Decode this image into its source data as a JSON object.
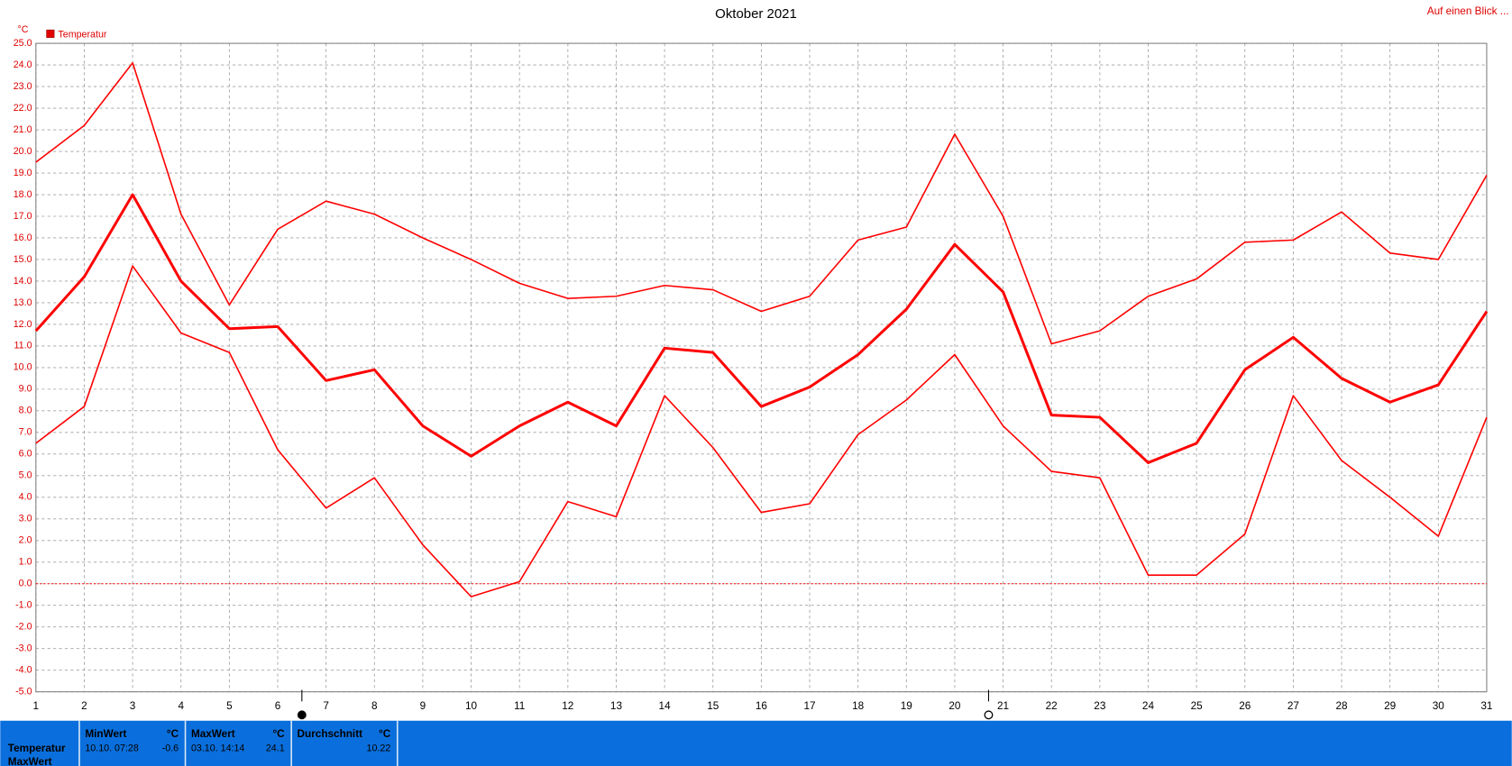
{
  "chart_data": {
    "type": "line",
    "title": "Oktober 2021",
    "y_label": "°C",
    "legend": "Temperatur",
    "corner_link": "Auf einen Blick ...",
    "x": [
      1,
      2,
      3,
      4,
      5,
      6,
      7,
      8,
      9,
      10,
      11,
      12,
      13,
      14,
      15,
      16,
      17,
      18,
      19,
      20,
      21,
      22,
      23,
      24,
      25,
      26,
      27,
      28,
      29,
      30,
      31
    ],
    "xlim": [
      1,
      31
    ],
    "xticks": [
      1,
      2,
      3,
      4,
      5,
      6,
      7,
      8,
      9,
      10,
      11,
      12,
      13,
      14,
      15,
      16,
      17,
      18,
      19,
      20,
      21,
      22,
      23,
      24,
      25,
      26,
      27,
      28,
      29,
      30,
      31
    ],
    "ylim": [
      -5,
      25
    ],
    "yticks": [
      {
        "value": -5,
        "label": "-5.0"
      },
      {
        "value": -4,
        "label": "-4.0"
      },
      {
        "value": -3,
        "label": "-3.0"
      },
      {
        "value": -2,
        "label": "-2.0"
      },
      {
        "value": -1,
        "label": "-1.0"
      },
      {
        "value": 0,
        "label": "0.0"
      },
      {
        "value": 1,
        "label": "1.0"
      },
      {
        "value": 2,
        "label": "2.0"
      },
      {
        "value": 3,
        "label": "3.0"
      },
      {
        "value": 4,
        "label": "4.0"
      },
      {
        "value": 5,
        "label": "5.0"
      },
      {
        "value": 6,
        "label": "6.0"
      },
      {
        "value": 7,
        "label": "7.0"
      },
      {
        "value": 8,
        "label": "8.0"
      },
      {
        "value": 9,
        "label": "9.0"
      },
      {
        "value": 10,
        "label": "10.0"
      },
      {
        "value": 11,
        "label": "11.0"
      },
      {
        "value": 12,
        "label": "12.0"
      },
      {
        "value": 13,
        "label": "13.0"
      },
      {
        "value": 14,
        "label": "14.0"
      },
      {
        "value": 15,
        "label": "15.0"
      },
      {
        "value": 16,
        "label": "16.0"
      },
      {
        "value": 17,
        "label": "17.0"
      },
      {
        "value": 18,
        "label": "18.0"
      },
      {
        "value": 19,
        "label": "19.0"
      },
      {
        "value": 20,
        "label": "20.0"
      },
      {
        "value": 21,
        "label": "21.0"
      },
      {
        "value": 22,
        "label": "22.0"
      },
      {
        "value": 23,
        "label": "23.0"
      },
      {
        "value": 24,
        "label": "24.0"
      },
      {
        "value": 25,
        "label": "25.0"
      }
    ],
    "grid": true,
    "zero_line": true,
    "color": "#ff0000",
    "series": [
      {
        "color": "#ff0000",
        "width": 1.5,
        "values": [
          19.5,
          21.2,
          24.1,
          17.1,
          12.9,
          16.4,
          17.7,
          17.1,
          16.0,
          15.0,
          13.9,
          13.2,
          13.3,
          13.8,
          13.6,
          12.6,
          13.3,
          15.9,
          16.5,
          20.8,
          17.0,
          11.1,
          11.7,
          13.3,
          14.1,
          15.8,
          15.9,
          17.2,
          15.3,
          15.0,
          18.9
        ]
      },
      {
        "color": "#ff0000",
        "width": 2.8,
        "values": [
          11.7,
          14.2,
          18.0,
          14.0,
          11.8,
          11.9,
          9.4,
          9.9,
          7.3,
          5.9,
          7.3,
          8.4,
          7.3,
          10.9,
          10.7,
          8.2,
          9.1,
          10.6,
          12.7,
          15.7,
          13.5,
          7.8,
          7.7,
          5.6,
          6.5,
          9.9,
          11.4,
          9.5,
          8.4,
          9.2,
          12.6
        ]
      },
      {
        "color": "#ff0000",
        "width": 1.5,
        "values": [
          6.5,
          8.2,
          14.7,
          11.6,
          10.7,
          6.2,
          3.5,
          4.9,
          1.8,
          -0.6,
          0.1,
          3.8,
          3.1,
          8.7,
          6.3,
          3.3,
          3.7,
          6.9,
          8.5,
          10.6,
          7.3,
          5.2,
          4.9,
          0.4,
          0.4,
          2.3,
          8.7,
          5.7,
          4.0,
          2.2,
          7.7
        ]
      }
    ],
    "moon_phases": [
      {
        "x": 6.5,
        "filled": true
      },
      {
        "x": 20.7,
        "filled": false
      }
    ]
  },
  "panel": {
    "row_labels": [
      "Temperatur",
      "MaxWert"
    ],
    "boxes": [
      {
        "title": "MinWert",
        "unit": "°C",
        "time": "10.10.  07:28",
        "value": "-0.6"
      },
      {
        "title": "MaxWert",
        "unit": "°C",
        "time": "03.10.  14:14",
        "value": "24.1"
      },
      {
        "title": "Durchschnitt",
        "unit": "°C",
        "value": "10.22"
      }
    ]
  }
}
